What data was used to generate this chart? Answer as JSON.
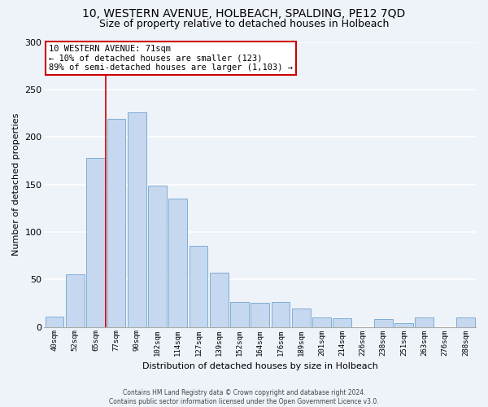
{
  "title": "10, WESTERN AVENUE, HOLBEACH, SPALDING, PE12 7QD",
  "subtitle": "Size of property relative to detached houses in Holbeach",
  "xlabel": "Distribution of detached houses by size in Holbeach",
  "ylabel": "Number of detached properties",
  "bin_labels": [
    "40sqm",
    "52sqm",
    "65sqm",
    "77sqm",
    "90sqm",
    "102sqm",
    "114sqm",
    "127sqm",
    "139sqm",
    "152sqm",
    "164sqm",
    "176sqm",
    "189sqm",
    "201sqm",
    "214sqm",
    "226sqm",
    "238sqm",
    "251sqm",
    "263sqm",
    "276sqm",
    "288sqm"
  ],
  "bar_heights": [
    11,
    55,
    178,
    219,
    226,
    149,
    135,
    85,
    57,
    26,
    25,
    26,
    19,
    10,
    9,
    0,
    8,
    4,
    10,
    0,
    10
  ],
  "bar_color": "#c5d8f0",
  "bar_edge_color": "#7eadd4",
  "vline_x": 2.5,
  "annotation_line1": "10 WESTERN AVENUE: 71sqm",
  "annotation_line2": "← 10% of detached houses are smaller (123)",
  "annotation_line3": "89% of semi-detached houses are larger (1,103) →",
  "annotation_box_color": "#ffffff",
  "annotation_box_edge_color": "#cc0000",
  "vline_color": "#cc0000",
  "footer_line1": "Contains HM Land Registry data © Crown copyright and database right 2024.",
  "footer_line2": "Contains public sector information licensed under the Open Government Licence v3.0.",
  "ylim": [
    0,
    300
  ],
  "yticks": [
    0,
    50,
    100,
    150,
    200,
    250,
    300
  ],
  "background_color": "#eef2f9",
  "grid_color": "#ffffff",
  "title_fontsize": 10,
  "subtitle_fontsize": 9,
  "bar_fontsize": 7,
  "ylabel_fontsize": 8,
  "xlabel_fontsize": 8
}
